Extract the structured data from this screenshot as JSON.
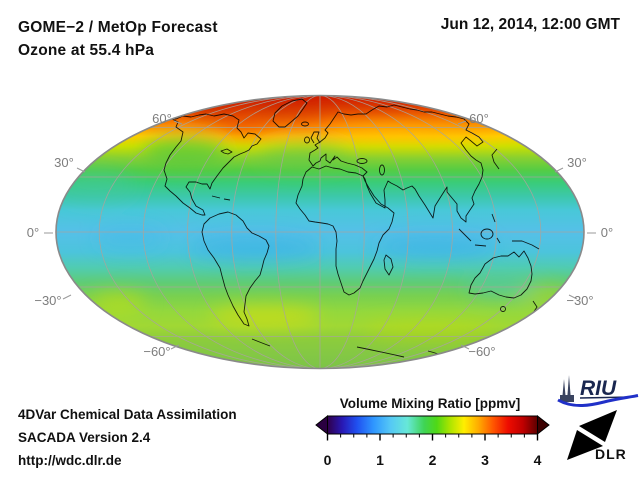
{
  "header": {
    "title_line1": "GOME−2 / MetOp Forecast",
    "title_line2": "Ozone at 55.4 hPa",
    "datetime": "Jun 12, 2014, 12:00 GMT"
  },
  "map": {
    "lat_labels": {
      "n60": "60°",
      "n30": "30°",
      "eq0": "0°",
      "s30": "−30°",
      "s60": "−60°"
    },
    "field_stops": [
      {
        "o": "0%",
        "c": "#c81400"
      },
      {
        "o": "3.3%",
        "c": "#d42000"
      },
      {
        "o": "6.6%",
        "c": "#e83800"
      },
      {
        "o": "11%",
        "c": "#ff8800"
      },
      {
        "o": "15%",
        "c": "#ffcc00"
      },
      {
        "o": "18.6%",
        "c": "#cce000"
      },
      {
        "o": "23%",
        "c": "#88d030"
      },
      {
        "o": "27.4%",
        "c": "#55cc44"
      },
      {
        "o": "31.8%",
        "c": "#3acc77"
      },
      {
        "o": "37%",
        "c": "#3cc8aa"
      },
      {
        "o": "42%",
        "c": "#48c8d8"
      },
      {
        "o": "50%",
        "c": "#55c0e8"
      },
      {
        "o": "57.3%",
        "c": "#4cc4dc"
      },
      {
        "o": "63.1%",
        "c": "#50ccb0"
      },
      {
        "o": "68.2%",
        "c": "#5ecc78"
      },
      {
        "o": "73.3%",
        "c": "#78d050"
      },
      {
        "o": "79.2%",
        "c": "#94d83c"
      },
      {
        "o": "84.3%",
        "c": "#a0d834"
      },
      {
        "o": "89.4%",
        "c": "#8ccc3c"
      },
      {
        "o": "94.5%",
        "c": "#84c844"
      },
      {
        "o": "100%",
        "c": "#7cc448"
      }
    ]
  },
  "colorbar": {
    "title": "Volume Mixing Ratio [ppmv]",
    "ticks": [
      "0",
      "1",
      "2",
      "3",
      "4"
    ],
    "arrow_left_color": "#2a0040",
    "arrow_right_color": "#3c0000",
    "stops": [
      {
        "o": "0%",
        "c": "#30004a"
      },
      {
        "o": "7%",
        "c": "#2818b4"
      },
      {
        "o": "14%",
        "c": "#2050f0"
      },
      {
        "o": "22%",
        "c": "#2f97ff"
      },
      {
        "o": "30%",
        "c": "#55c8f5"
      },
      {
        "o": "38%",
        "c": "#67e8d8"
      },
      {
        "o": "46%",
        "c": "#3fd455"
      },
      {
        "o": "52%",
        "c": "#4fd816"
      },
      {
        "o": "58%",
        "c": "#a8e400"
      },
      {
        "o": "65%",
        "c": "#ffee00"
      },
      {
        "o": "72%",
        "c": "#ffaa00"
      },
      {
        "o": "79%",
        "c": "#ff5500"
      },
      {
        "o": "86%",
        "c": "#ee0c00"
      },
      {
        "o": "93%",
        "c": "#c00000"
      },
      {
        "o": "100%",
        "c": "#5c0000"
      }
    ]
  },
  "footer": {
    "line1": "4DVar Chemical Data Assimilation",
    "line2": "SACADA Version 2.4",
    "line3": "http://wdc.dlr.de"
  },
  "logos": {
    "riu": "RIU",
    "dlr": "DLR"
  },
  "chart_data": {
    "type": "heatmap",
    "title": "GOME−2 / MetOp Forecast — Ozone at 55.4 hPa",
    "timestamp": "Jun 12, 2014, 12:00 GMT",
    "projection": "Mollweide (global, coastlines, graticule every 30° lat/lon)",
    "variable": "Ozone volume mixing ratio",
    "pressure_level_hPa": 55.4,
    "colorbar": {
      "label": "Volume Mixing Ratio [ppmv]",
      "range": [
        0,
        4
      ],
      "ticks": [
        0,
        1,
        2,
        3,
        4
      ]
    },
    "graticule_lat_labels": [
      60,
      30,
      0,
      -30,
      -60
    ],
    "zonal_mean_estimates_ppmv": [
      {
        "lat": 85,
        "ppmv": 3.6
      },
      {
        "lat": 70,
        "ppmv": 3.2
      },
      {
        "lat": 60,
        "ppmv": 2.9
      },
      {
        "lat": 50,
        "ppmv": 2.5
      },
      {
        "lat": 35,
        "ppmv": 2.1
      },
      {
        "lat": 20,
        "ppmv": 1.6
      },
      {
        "lat": 0,
        "ppmv": 1.4
      },
      {
        "lat": -20,
        "ppmv": 1.6
      },
      {
        "lat": -35,
        "ppmv": 2.0
      },
      {
        "lat": -50,
        "ppmv": 2.5
      },
      {
        "lat": -65,
        "ppmv": 2.2
      }
    ],
    "notable_features": [
      "Maximum ~3.5–3.8 ppmv (dark red) over Arctic / northern Canada, Greenland and Barents region",
      "Yellow-orange band ~2.7–3.0 ppmv along 55–65°N across Siberia and NE Canada",
      "Tropical minimum ~1.3–1.5 ppmv (cyan/light blue) between 20°S and 20°N",
      "Secondary yellow band ~2.6 ppmv near 45–55°S (Patagonia, south Indian Ocean)"
    ],
    "attribution": [
      "4DVar Chemical Data Assimilation",
      "SACADA Version 2.4",
      "http://wdc.dlr.de"
    ]
  }
}
